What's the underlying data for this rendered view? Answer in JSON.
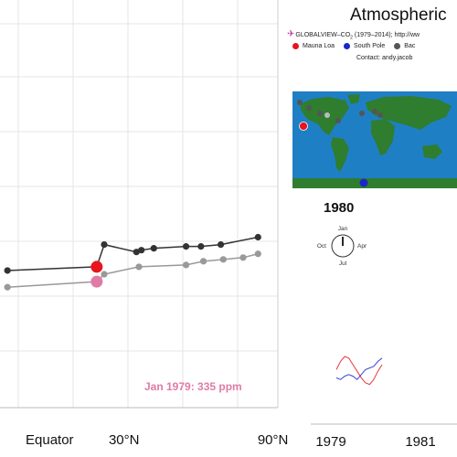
{
  "title": "Atmospheric",
  "sources_prefix": "GLOBALVIEW–CO",
  "sources_sub": "2",
  "sources_suffix": " (1979–2014); http://ww",
  "contact": "Contact: andy.jacob",
  "legend": [
    {
      "label": "Mauna Loa",
      "color": "#e8141e"
    },
    {
      "label": "South Pole",
      "color": "#1b26c9"
    },
    {
      "label": "Bac",
      "color": "#555555"
    }
  ],
  "year": "1980",
  "clock": {
    "top": "Jan",
    "left": "Oct",
    "right": "Apr",
    "bottom": "Jul"
  },
  "annotation": "Jan 1979: 335 ppm",
  "colors": {
    "mauna_loa": "#e8141e",
    "south_pole": "#1b26c9",
    "background_sites": "#555555",
    "annotation": "#e07aa6",
    "ocean": "#1f7fc4",
    "land": "#2f7d2f"
  },
  "chart_data": [
    {
      "type": "line",
      "xlabel": "",
      "ylabel": "",
      "x_tick_labels": [
        "Equator",
        "30°N",
        "90°N"
      ],
      "x_ticks": [
        0,
        30,
        90
      ],
      "xlim": [
        -20,
        92
      ],
      "ylim": [
        330,
        352
      ],
      "grid": true,
      "series": [
        {
          "values": [
            [
              -17,
              337.4
            ],
            [
              19,
              337.6
            ],
            [
              22,
              338.8
            ],
            [
              35,
              338.4
            ],
            [
              37,
              338.5
            ],
            [
              42,
              338.6
            ],
            [
              55,
              338.7
            ],
            [
              61,
              338.7
            ],
            [
              69,
              338.8
            ],
            [
              84,
              339.2
            ]
          ]
        },
        {
          "values": [
            [
              -17,
              336.5
            ],
            [
              19,
              336.8
            ],
            [
              22,
              337.2
            ],
            [
              36,
              337.6
            ],
            [
              55,
              337.7
            ],
            [
              62,
              337.9
            ],
            [
              70,
              338.0
            ],
            [
              78,
              338.1
            ],
            [
              84,
              338.3
            ]
          ]
        }
      ],
      "highlight_points": [
        {
          "name": "Mauna Loa",
          "x": 19,
          "y": 337.6
        },
        {
          "x": 19,
          "y": 336.8
        }
      ]
    },
    {
      "type": "line",
      "x_tick_labels": [
        "1979",
        "1981"
      ],
      "series": [
        {
          "name": "Mauna Loa",
          "values": [
            0.2,
            0.7,
            1.0,
            0.9,
            0.5,
            0.1,
            -0.3,
            -0.6,
            -0.7,
            -0.4,
            0.1,
            0.5
          ]
        },
        {
          "name": "South Pole",
          "values": [
            -0.3,
            -0.4,
            -0.2,
            -0.1,
            -0.2,
            -0.4,
            -0.1,
            0.2,
            0.3,
            0.4,
            0.7,
            0.9
          ]
        }
      ]
    }
  ]
}
